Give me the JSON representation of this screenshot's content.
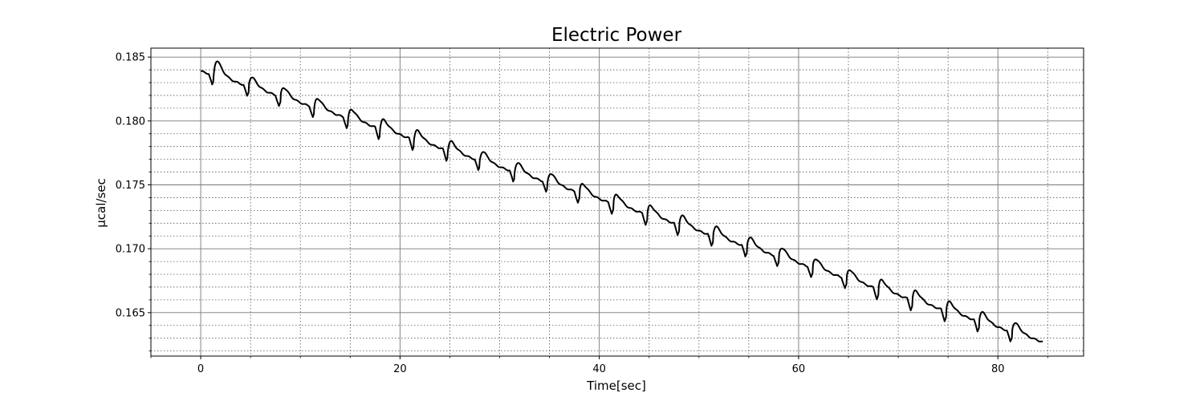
{
  "chart_data": {
    "type": "line",
    "title": "Electric Power",
    "xlabel": "Time[sec]",
    "ylabel": "µcal/sec",
    "xlim": [
      -5,
      88.6
    ],
    "ylim": [
      0.1616,
      0.1857
    ],
    "x_ticks": [
      0,
      20,
      40,
      60,
      80
    ],
    "x_tick_labels": [
      "0",
      "20",
      "40",
      "60",
      "80"
    ],
    "y_ticks": [
      0.165,
      0.17,
      0.175,
      0.18,
      0.185
    ],
    "y_tick_labels": [
      "0.165",
      "0.170",
      "0.175",
      "0.180",
      "0.185"
    ],
    "grid": {
      "major": true,
      "minor": true
    },
    "line_color": "#000000",
    "series": [
      {
        "x_start": 0,
        "x_end": 84.5,
        "y_start": 0.1839,
        "y_end": 0.1627,
        "spike_times": [
          1.3,
          4.8,
          8.0,
          11.4,
          14.8,
          18.0,
          21.4,
          24.8,
          28.0,
          31.5,
          34.8,
          38.0,
          41.4,
          44.8,
          48.0,
          51.4,
          54.8,
          58.0,
          61.4,
          64.8,
          68.0,
          71.4,
          74.8,
          78.1,
          81.4
        ]
      }
    ]
  }
}
